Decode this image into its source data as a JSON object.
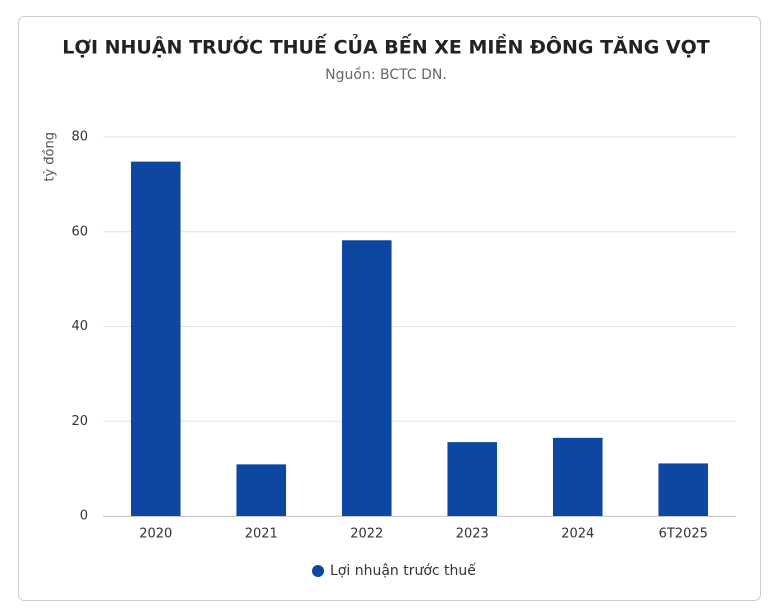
{
  "chart_data": {
    "type": "bar",
    "title": "LỢI NHUẬN TRƯỚC THUẾ CỦA BẾN XE MIỀN ĐÔNG TĂNG VỌT",
    "subtitle": "Nguồn: BCTC DN.",
    "y_label": "tỷ đồng",
    "categories": [
      "2020",
      "2021",
      "2022",
      "2023",
      "2024",
      "6T2025"
    ],
    "series": [
      {
        "name": "Lợi nhuận trước thuế",
        "color": "#0d47a1",
        "values": [
          74.8,
          10.9,
          58.2,
          15.6,
          16.5,
          11.1
        ]
      }
    ],
    "ylim": [
      0,
      80
    ],
    "yticks": [
      0,
      20,
      40,
      60,
      80
    ],
    "grid": true,
    "legend": "bottom"
  }
}
